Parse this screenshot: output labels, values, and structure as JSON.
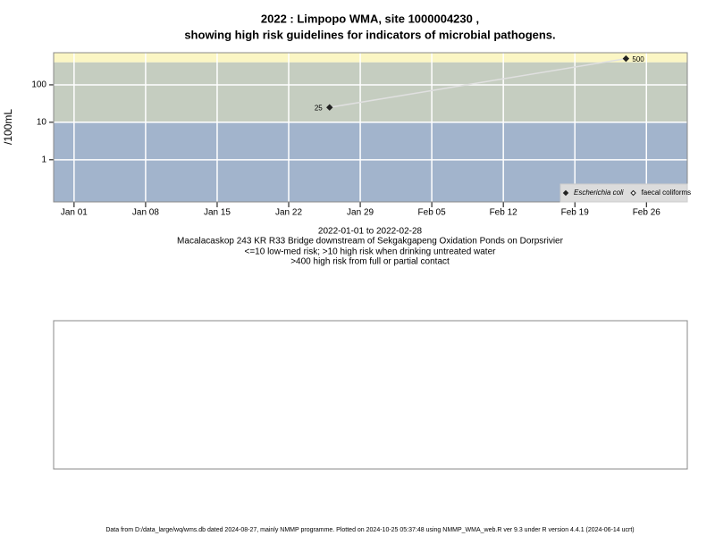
{
  "chart_data": {
    "type": "line",
    "title": [
      "2022 : Limpopo WMA, site 1000004230 ,",
      "showing high risk guidelines for indicators of microbial pathogens."
    ],
    "ylabel": "/100mL",
    "xlabel": "2022-01-01 to 2022-02-28",
    "notes": [
      "Macalacaskop 243 KR R33 Bridge downstream of Sekgakgapeng Oxidation Ponds on Dorpsrivier",
      "<=10 low-med risk; >10 high risk when drinking untreated water",
      ">400 high risk from full or partial contact"
    ],
    "footer": "Data from D:/data_large/wq/wms.db dated 2024-08-27, mainly NMMP programme. Plotted on 2024-10-25 05:37:48 using NMMP_WMA_web.R ver 9.3 under R version 4.4.1 (2024-06-14 ucrt)",
    "log_y": true,
    "grid": true,
    "legend": "bottom-right",
    "xlim": [
      "2021-12-30",
      "2022-03-02"
    ],
    "xticks": [
      {
        "value": "2022-01-01",
        "label": "Jan 01"
      },
      {
        "value": "2022-01-08",
        "label": "Jan 08"
      },
      {
        "value": "2022-01-15",
        "label": "Jan 15"
      },
      {
        "value": "2022-01-22",
        "label": "Jan 22"
      },
      {
        "value": "2022-01-29",
        "label": "Jan 29"
      },
      {
        "value": "2022-02-05",
        "label": "Feb 05"
      },
      {
        "value": "2022-02-12",
        "label": "Feb 12"
      },
      {
        "value": "2022-02-19",
        "label": "Feb 19"
      },
      {
        "value": "2022-02-26",
        "label": "Feb 26"
      }
    ],
    "ylim": [
      0.075,
      720
    ],
    "yticks": [
      1,
      10,
      100
    ],
    "bands": [
      {
        "to": 10,
        "color": "#a2b4cc"
      },
      {
        "to": 400,
        "color": "#c5cdc0"
      },
      {
        "to": 720,
        "color": "#fbf6c4"
      }
    ],
    "series": [
      {
        "name": "Escherichia coli",
        "color": "#e0e0e0",
        "marker": "filled",
        "x": [
          "2022-01-26",
          "2022-02-24"
        ],
        "values": [
          25,
          500
        ]
      },
      {
        "name": "faecal coliforms",
        "color": "#e0e0e0",
        "marker": "open",
        "x": [],
        "values": []
      }
    ]
  }
}
